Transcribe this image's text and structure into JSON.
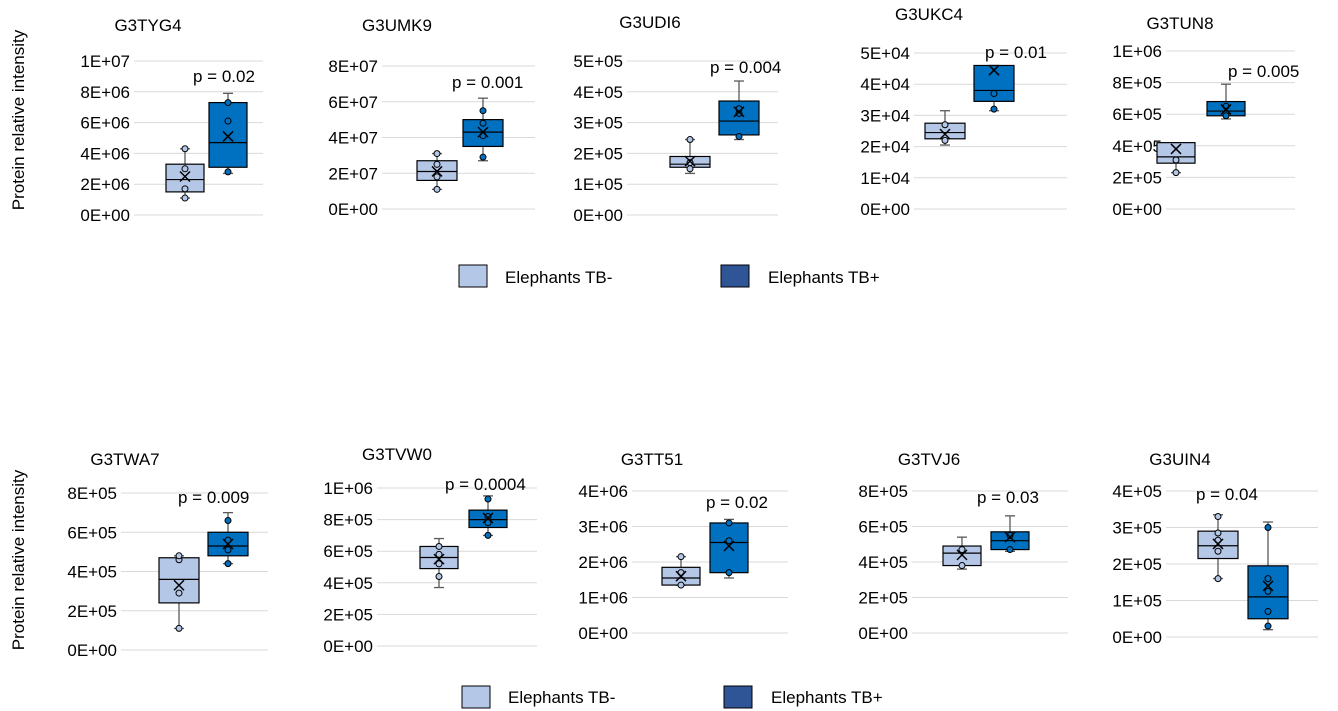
{
  "ylabel": "Protein relative intensity",
  "legend": [
    {
      "label": "Elephants TB-",
      "color": "#b4c7e7"
    },
    {
      "label": "Elephants TB+",
      "color": "#2f5597"
    }
  ],
  "colors": {
    "tbneg_fill": "#b4c7e7",
    "tbpos_fill": "#0070c0",
    "gridline": "#d9d9d9",
    "whisker": "#595959"
  },
  "chart_data": [
    {
      "type": "box",
      "title": "G3TYG4",
      "ylim": [
        0,
        10000000
      ],
      "yticks": [
        "0E+00",
        "2E+06",
        "4E+06",
        "6E+06",
        "8E+06",
        "1E+07"
      ],
      "p_value": "p = 0.02",
      "series": [
        {
          "name": "Elephants TB-",
          "min": 1100000,
          "q1": 1500000,
          "median": 2300000,
          "q3": 3300000,
          "max": 4300000,
          "mean": 2500000,
          "points": [
            1100000,
            1700000,
            3000000,
            4300000
          ]
        },
        {
          "name": "Elephants TB+",
          "min": 2700000,
          "q1": 3100000,
          "median": 4700000,
          "q3": 7300000,
          "max": 7900000,
          "mean": 5100000,
          "points": [
            2800000,
            6100000,
            7300000
          ]
        }
      ]
    },
    {
      "type": "box",
      "title": "G3UMK9",
      "ylim": [
        0,
        80000000
      ],
      "yticks": [
        "0E+00",
        "2E+07",
        "4E+07",
        "6E+07",
        "8E+07"
      ],
      "p_value": "p = 0.001",
      "series": [
        {
          "name": "Elephants TB-",
          "min": 11000000,
          "q1": 16000000,
          "median": 21000000,
          "q3": 27000000,
          "max": 31000000,
          "mean": 21000000,
          "points": [
            11000000,
            18000000,
            25000000,
            31000000
          ]
        },
        {
          "name": "Elephants TB+",
          "min": 27000000,
          "q1": 35000000,
          "median": 43000000,
          "q3": 50000000,
          "max": 62000000,
          "mean": 43000000,
          "points": [
            29000000,
            41000000,
            48000000,
            55000000
          ]
        }
      ]
    },
    {
      "type": "box",
      "title": "G3UDI6",
      "ylim": [
        0,
        500000
      ],
      "yticks": [
        "0E+00",
        "1E+05",
        "2E+05",
        "3E+05",
        "4E+05",
        "5E+05"
      ],
      "p_value": "p = 0.004",
      "series": [
        {
          "name": "Elephants TB-",
          "min": 135000,
          "q1": 155000,
          "median": 165000,
          "q3": 190000,
          "max": 245000,
          "mean": 175000,
          "points": [
            150000,
            170000,
            245000
          ]
        },
        {
          "name": "Elephants TB+",
          "min": 245000,
          "q1": 260000,
          "median": 305000,
          "q3": 370000,
          "max": 435000,
          "mean": 335000,
          "points": [
            255000,
            330000,
            345000
          ]
        }
      ]
    },
    {
      "type": "box",
      "title": "G3UKC4",
      "ylim": [
        0,
        50000
      ],
      "yticks": [
        "0E+00",
        "1E+04",
        "2E+04",
        "3E+04",
        "4E+04",
        "5E+04"
      ],
      "p_value": "p = 0.01",
      "series": [
        {
          "name": "Elephants TB-",
          "min": 20500,
          "q1": 22500,
          "median": 24500,
          "q3": 27500,
          "max": 31500,
          "mean": 24000,
          "points": [
            22000,
            27000
          ]
        },
        {
          "name": "Elephants TB+",
          "min": 31500,
          "q1": 34500,
          "median": 38000,
          "q3": 46000,
          "max": 46000,
          "mean": 44500,
          "points": [
            32000,
            37000
          ]
        }
      ]
    },
    {
      "type": "box",
      "title": "G3TUN8",
      "ylim": [
        0,
        1000000
      ],
      "yticks": [
        "0E+00",
        "2E+05",
        "4E+05",
        "6E+05",
        "8E+05",
        "1E+06"
      ],
      "p_value": "p = 0.005",
      "series": [
        {
          "name": "Elephants TB-",
          "min": 230000,
          "q1": 290000,
          "median": 330000,
          "q3": 420000,
          "max": 420000,
          "mean": 380000,
          "points": [
            230000,
            310000
          ]
        },
        {
          "name": "Elephants TB+",
          "min": 570000,
          "q1": 590000,
          "median": 620000,
          "q3": 680000,
          "max": 790000,
          "mean": 630000,
          "points": [
            590000,
            650000
          ]
        }
      ]
    },
    {
      "type": "box",
      "title": "G3TWA7",
      "ylim": [
        0,
        800000
      ],
      "yticks": [
        "0E+00",
        "2E+05",
        "4E+05",
        "6E+05",
        "8E+05"
      ],
      "p_value": "p = 0.009",
      "series": [
        {
          "name": "Elephants TB-",
          "min": 110000,
          "q1": 240000,
          "median": 360000,
          "q3": 470000,
          "max": 480000,
          "mean": 330000,
          "points": [
            110000,
            290000,
            460000,
            480000
          ]
        },
        {
          "name": "Elephants TB+",
          "min": 440000,
          "q1": 480000,
          "median": 530000,
          "q3": 600000,
          "max": 700000,
          "mean": 540000,
          "points": [
            440000,
            510000,
            560000,
            660000
          ]
        }
      ]
    },
    {
      "type": "box",
      "title": "G3TVW0",
      "ylim": [
        0,
        1000000
      ],
      "yticks": [
        "0E+00",
        "2E+05",
        "4E+05",
        "6E+05",
        "8E+05",
        "1E+06"
      ],
      "p_value": "p = 0.0004",
      "series": [
        {
          "name": "Elephants TB-",
          "min": 370000,
          "q1": 490000,
          "median": 560000,
          "q3": 630000,
          "max": 680000,
          "mean": 550000,
          "points": [
            440000,
            520000,
            580000,
            630000
          ]
        },
        {
          "name": "Elephants TB+",
          "min": 700000,
          "q1": 750000,
          "median": 800000,
          "q3": 860000,
          "max": 950000,
          "mean": 810000,
          "points": [
            700000,
            780000,
            820000,
            930000
          ]
        }
      ]
    },
    {
      "type": "box",
      "title": "G3TT51",
      "ylim": [
        0,
        4000000
      ],
      "yticks": [
        "0E+00",
        "1E+06",
        "2E+06",
        "3E+06",
        "4E+06"
      ],
      "p_value": "p = 0.02",
      "series": [
        {
          "name": "Elephants TB-",
          "min": 1350000,
          "q1": 1350000,
          "median": 1550000,
          "q3": 1850000,
          "max": 2150000,
          "mean": 1600000,
          "points": [
            1350000,
            1700000,
            2150000
          ]
        },
        {
          "name": "Elephants TB+",
          "min": 1550000,
          "q1": 1700000,
          "median": 2550000,
          "q3": 3100000,
          "max": 3200000,
          "mean": 2450000,
          "points": [
            1700000,
            2600000,
            3100000
          ]
        }
      ]
    },
    {
      "type": "box",
      "title": "G3TVJ6",
      "ylim": [
        0,
        800000
      ],
      "yticks": [
        "0E+00",
        "2E+05",
        "4E+05",
        "6E+05",
        "8E+05"
      ],
      "p_value": "p = 0.03",
      "series": [
        {
          "name": "Elephants TB-",
          "min": 360000,
          "q1": 380000,
          "median": 450000,
          "q3": 490000,
          "max": 540000,
          "mean": 440000,
          "points": [
            380000,
            470000
          ]
        },
        {
          "name": "Elephants TB+",
          "min": 460000,
          "q1": 470000,
          "median": 520000,
          "q3": 570000,
          "max": 660000,
          "mean": 540000,
          "points": [
            470000,
            550000
          ]
        }
      ]
    },
    {
      "type": "box",
      "title": "G3UIN4",
      "ylim": [
        0,
        400000
      ],
      "yticks": [
        "0E+00",
        "1E+05",
        "2E+05",
        "3E+05",
        "4E+05"
      ],
      "p_value": "p = 0.04",
      "series": [
        {
          "name": "Elephants TB-",
          "min": 160000,
          "q1": 215000,
          "median": 250000,
          "q3": 290000,
          "max": 335000,
          "mean": 255000,
          "points": [
            160000,
            235000,
            265000,
            285000,
            330000
          ]
        },
        {
          "name": "Elephants TB+",
          "min": 20000,
          "q1": 50000,
          "median": 110000,
          "q3": 195000,
          "max": 315000,
          "mean": 140000,
          "points": [
            30000,
            70000,
            125000,
            160000,
            300000
          ]
        }
      ]
    }
  ]
}
